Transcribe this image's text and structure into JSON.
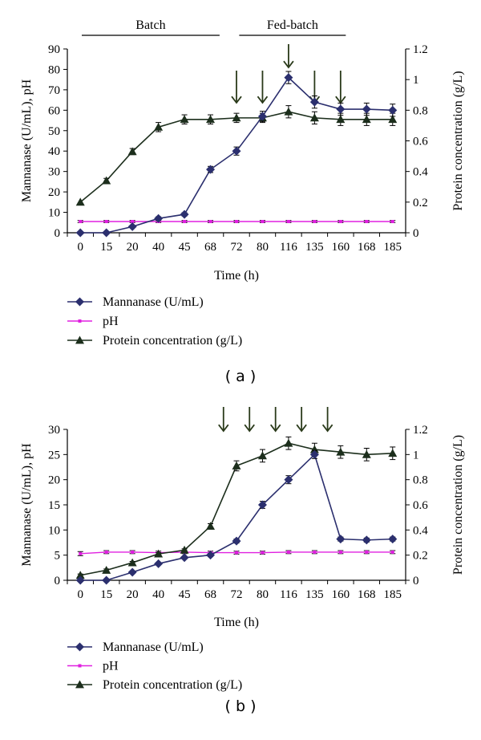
{
  "chart_data": [
    {
      "type": "line",
      "panel_label": "( a )",
      "categories": [
        "0",
        "15",
        "20",
        "40",
        "45",
        "68",
        "72",
        "80",
        "116",
        "135",
        "160",
        "168",
        "185"
      ],
      "xlabel": "Time (h)",
      "ylabel": "Mannanase (U/mL), pH",
      "y2label": "Protein concentration (g/L)",
      "ylim": [
        0,
        90
      ],
      "yticks": [
        0,
        10,
        20,
        30,
        40,
        50,
        60,
        70,
        80,
        90
      ],
      "y2lim": [
        0,
        1.2
      ],
      "y2ticks": [
        "0",
        "0.2",
        "0.4",
        "0.6",
        "0.8",
        "1",
        "1.2"
      ],
      "phases": [
        {
          "label": "Batch",
          "from": 0,
          "to": 5.85
        },
        {
          "label": "Fed-batch",
          "from": 6.05,
          "to": 10.7
        }
      ],
      "arrows": [
        6.5,
        7.5,
        8.5,
        9.5,
        10.5
      ],
      "big_arrows": [
        8.5
      ],
      "series": [
        {
          "name": "Mannanase (U/mL)",
          "axis": "left",
          "marker": "diamond",
          "color": "#2b2f6e",
          "values": [
            0,
            0,
            3,
            7,
            9,
            31,
            40,
            57,
            76,
            64,
            60.5,
            60.5,
            60
          ],
          "errors": [
            0,
            0,
            0,
            0.8,
            0.8,
            1.5,
            2,
            2.5,
            3,
            3,
            3,
            3,
            3
          ]
        },
        {
          "name": "pH",
          "axis": "left",
          "marker": "square",
          "color": "#e020e0",
          "values": [
            5.5,
            5.5,
            5.5,
            5.5,
            5.5,
            5.5,
            5.5,
            5.5,
            5.5,
            5.5,
            5.5,
            5.5,
            5.5
          ],
          "errors": [
            0.5,
            0.5,
            0.5,
            0.5,
            0.5,
            0.5,
            0.5,
            0.5,
            0.5,
            0.5,
            0.5,
            0.5,
            0.5
          ]
        },
        {
          "name": "Protein concentration (g/L)",
          "axis": "right",
          "marker": "triangle",
          "color": "#1c2e1c",
          "values": [
            0.2,
            0.34,
            0.53,
            0.69,
            0.74,
            0.74,
            0.75,
            0.75,
            0.79,
            0.75,
            0.74,
            0.74,
            0.74
          ],
          "errors": [
            0,
            0.015,
            0.02,
            0.03,
            0.03,
            0.03,
            0.03,
            0.03,
            0.04,
            0.04,
            0.04,
            0.04,
            0.04
          ]
        }
      ]
    },
    {
      "type": "line",
      "panel_label": "( b )",
      "categories": [
        "0",
        "15",
        "20",
        "40",
        "45",
        "68",
        "72",
        "80",
        "116",
        "135",
        "160",
        "168",
        "185"
      ],
      "xlabel": "Time (h)",
      "ylabel": "Mannanase (U/mL), pH",
      "y2label": "Protein concentration (g/L)",
      "ylim": [
        0,
        30
      ],
      "yticks": [
        0,
        5,
        10,
        15,
        20,
        25,
        30
      ],
      "y2lim": [
        0,
        1.2
      ],
      "y2ticks": [
        "0",
        "0.2",
        "0.4",
        "0.6",
        "0.8",
        "1",
        "1.2"
      ],
      "phases": [],
      "arrows": [
        6,
        7,
        8,
        9,
        10
      ],
      "big_arrows": [],
      "series": [
        {
          "name": "Mannanase (U/mL)",
          "axis": "left",
          "marker": "diamond",
          "color": "#2b2f6e",
          "values": [
            0,
            0,
            1.6,
            3.3,
            4.5,
            5,
            7.8,
            15,
            20,
            25,
            8.2,
            8,
            8.2
          ],
          "errors": [
            0,
            0,
            0,
            0,
            0,
            0.3,
            0.4,
            0.7,
            0.8,
            0.8,
            0.4,
            0.4,
            0.4
          ]
        },
        {
          "name": "pH",
          "axis": "left",
          "marker": "square",
          "color": "#e020e0",
          "values": [
            5.3,
            5.6,
            5.6,
            5.5,
            5.6,
            5.5,
            5.5,
            5.5,
            5.6,
            5.6,
            5.6,
            5.6,
            5.6
          ],
          "errors": [
            0.4,
            0.3,
            0.3,
            0.3,
            0.3,
            0.3,
            0.3,
            0.3,
            0.3,
            0.3,
            0.3,
            0.3,
            0.3
          ]
        },
        {
          "name": "Protein concentration (g/L)",
          "axis": "right",
          "marker": "triangle",
          "color": "#1c2e1c",
          "values": [
            0.04,
            0.08,
            0.14,
            0.21,
            0.24,
            0.43,
            0.91,
            0.99,
            1.09,
            1.04,
            1.02,
            1.0,
            1.01
          ],
          "errors": [
            0.01,
            0.01,
            0.01,
            0.01,
            0.01,
            0.02,
            0.04,
            0.05,
            0.05,
            0.05,
            0.05,
            0.05,
            0.05
          ]
        }
      ]
    }
  ]
}
